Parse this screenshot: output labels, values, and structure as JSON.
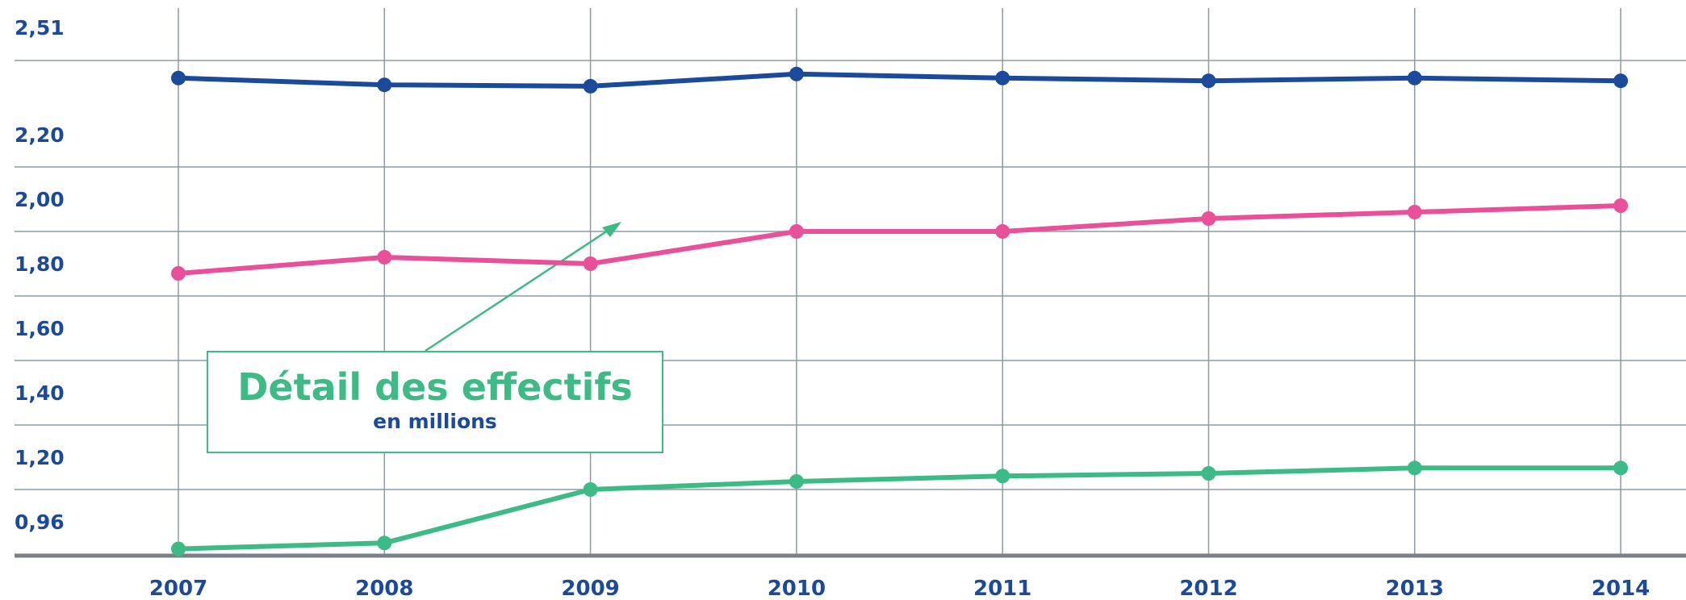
{
  "annotation": {
    "title": "Détail des effectifs",
    "subtitle": "en millions"
  },
  "colors": {
    "grid": "#8d9aa0",
    "baseline": "#7a8085",
    "text": "#1b4a9b",
    "arrow": "#3dba86"
  },
  "chart_data": {
    "type": "line",
    "title": "",
    "xlabel": "",
    "ylabel": "",
    "x": [
      "2007",
      "2008",
      "2009",
      "2010",
      "2011",
      "2012",
      "2013",
      "2014"
    ],
    "y_tick_labels": [
      "2,51",
      "2,20",
      "2,00",
      "1,80",
      "1,60",
      "1,40",
      "1,20",
      "0,96"
    ],
    "grid": true,
    "legend": "none",
    "series": [
      {
        "color": "#1b4a9b",
        "values": [
          2.38,
          2.33,
          2.32,
          2.41,
          2.38,
          2.36,
          2.38,
          2.36
        ]
      },
      {
        "color": "#e8509a",
        "values": [
          1.67,
          1.72,
          1.7,
          1.8,
          1.8,
          1.84,
          1.86,
          1.88
        ]
      },
      {
        "color": "#3dba86",
        "values": [
          0.86,
          0.87,
          0.96,
          0.99,
          1.01,
          1.02,
          1.04,
          1.04
        ]
      }
    ]
  }
}
